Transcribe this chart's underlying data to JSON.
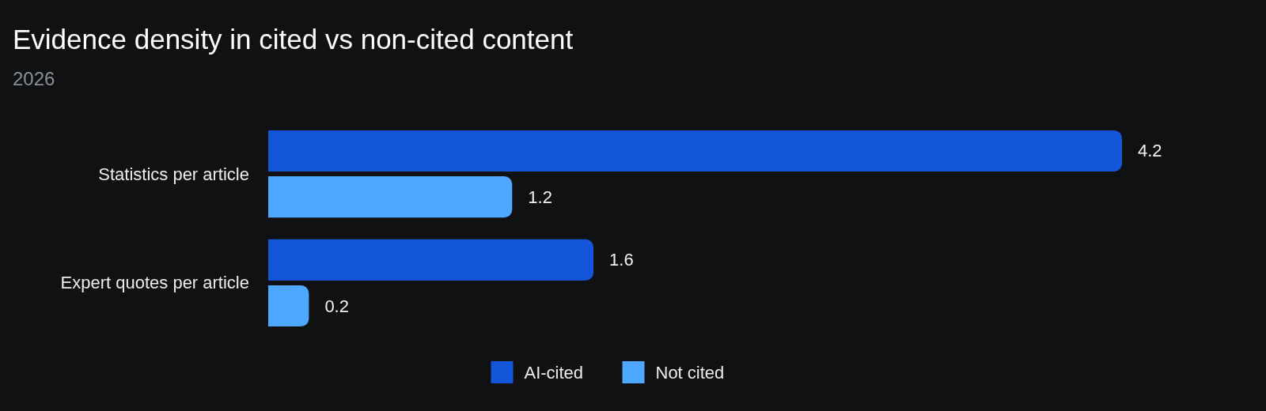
{
  "chart_data": {
    "type": "bar",
    "orientation": "horizontal",
    "title": "Evidence density in cited vs non-cited content",
    "subtitle": "2026",
    "categories": [
      "Statistics per article",
      "Expert quotes per article"
    ],
    "series": [
      {
        "name": "AI-cited",
        "color": "#1456d9",
        "values": [
          4.2,
          1.6
        ]
      },
      {
        "name": "Not cited",
        "color": "#4fa8ff",
        "values": [
          1.2,
          0.2
        ]
      }
    ],
    "data_labels": true,
    "legend": "bottom"
  }
}
